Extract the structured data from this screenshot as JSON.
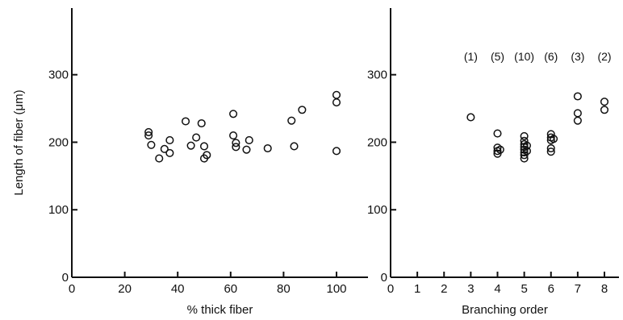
{
  "chart_data": [
    {
      "type": "scatter",
      "xlabel": "% thick fiber",
      "ylabel": "Length of fiber (μm)",
      "xlim": [
        0,
        100
      ],
      "ylim": [
        0,
        400
      ],
      "xticks": [
        0,
        20,
        40,
        60,
        80,
        100
      ],
      "yticks": [
        0,
        100,
        200,
        300
      ],
      "grid": false,
      "marker": "open-circle",
      "points": [
        {
          "x": 29,
          "y": 215
        },
        {
          "x": 29,
          "y": 210
        },
        {
          "x": 30,
          "y": 196
        },
        {
          "x": 33,
          "y": 176
        },
        {
          "x": 35,
          "y": 190
        },
        {
          "x": 37,
          "y": 184
        },
        {
          "x": 37,
          "y": 203
        },
        {
          "x": 43,
          "y": 231
        },
        {
          "x": 45,
          "y": 195
        },
        {
          "x": 47,
          "y": 207
        },
        {
          "x": 49,
          "y": 228
        },
        {
          "x": 50,
          "y": 194
        },
        {
          "x": 50,
          "y": 176
        },
        {
          "x": 51,
          "y": 181
        },
        {
          "x": 61,
          "y": 242
        },
        {
          "x": 61,
          "y": 210
        },
        {
          "x": 62,
          "y": 199
        },
        {
          "x": 62,
          "y": 193
        },
        {
          "x": 66,
          "y": 189
        },
        {
          "x": 67,
          "y": 203
        },
        {
          "x": 74,
          "y": 191
        },
        {
          "x": 83,
          "y": 232
        },
        {
          "x": 84,
          "y": 194
        },
        {
          "x": 87,
          "y": 248
        },
        {
          "x": 100,
          "y": 270
        },
        {
          "x": 100,
          "y": 259
        },
        {
          "x": 100,
          "y": 187
        }
      ]
    },
    {
      "type": "scatter",
      "xlabel": "Branching order",
      "ylabel": "",
      "xlim": [
        0,
        8.6
      ],
      "ylim": [
        0,
        400
      ],
      "xticks": [
        0,
        1,
        2,
        3,
        4,
        5,
        6,
        7,
        8
      ],
      "yticks": [
        0,
        100,
        200,
        300
      ],
      "grid": false,
      "marker": "open-circle",
      "annotations": [
        {
          "x": 3,
          "text": "(1)"
        },
        {
          "x": 4,
          "text": "(5)"
        },
        {
          "x": 5,
          "text": "(10)"
        },
        {
          "x": 6,
          "text": "(6)"
        },
        {
          "x": 7,
          "text": "(3)"
        },
        {
          "x": 8,
          "text": "(2)"
        }
      ],
      "points": [
        {
          "x": 3,
          "y": 237
        },
        {
          "x": 4,
          "y": 213
        },
        {
          "x": 4,
          "y": 192
        },
        {
          "x": 4,
          "y": 187
        },
        {
          "x": 4,
          "y": 183
        },
        {
          "x": 4.1,
          "y": 189
        },
        {
          "x": 5,
          "y": 209
        },
        {
          "x": 5,
          "y": 202
        },
        {
          "x": 5,
          "y": 197
        },
        {
          "x": 5,
          "y": 193
        },
        {
          "x": 5,
          "y": 189
        },
        {
          "x": 5,
          "y": 185
        },
        {
          "x": 5,
          "y": 181
        },
        {
          "x": 5,
          "y": 176
        },
        {
          "x": 5.1,
          "y": 195
        },
        {
          "x": 5.1,
          "y": 187
        },
        {
          "x": 6,
          "y": 212
        },
        {
          "x": 6,
          "y": 207
        },
        {
          "x": 6,
          "y": 203
        },
        {
          "x": 6,
          "y": 191
        },
        {
          "x": 6,
          "y": 186
        },
        {
          "x": 6.1,
          "y": 205
        },
        {
          "x": 7,
          "y": 268
        },
        {
          "x": 7,
          "y": 243
        },
        {
          "x": 7,
          "y": 232
        },
        {
          "x": 8,
          "y": 260
        },
        {
          "x": 8,
          "y": 248
        }
      ]
    }
  ]
}
